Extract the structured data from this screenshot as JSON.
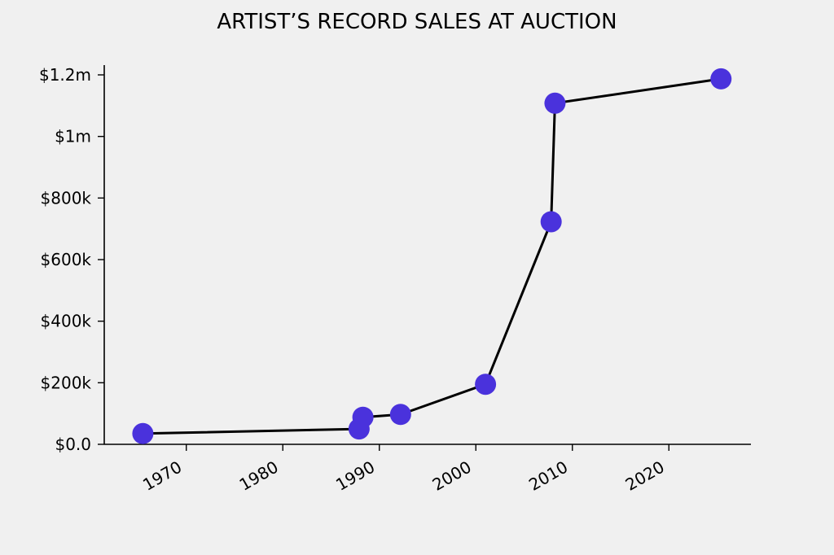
{
  "chart_data": {
    "type": "line",
    "title": "ARTIST’S RECORD SALES AT AUCTION",
    "xlabel": "",
    "ylabel": "",
    "xlim": [
      1961.5,
      2028.5
    ],
    "ylim": [
      0,
      1200000
    ],
    "x_ticks": [
      1970,
      1980,
      1990,
      2000,
      2010,
      2020
    ],
    "x_tick_labels": [
      "1970",
      "1980",
      "1990",
      "2000",
      "2010",
      "2020"
    ],
    "y_ticks": [
      0,
      200000,
      400000,
      600000,
      800000,
      1000000,
      1200000
    ],
    "y_tick_labels": [
      "$0.0",
      "$200k",
      "$400k",
      "$600k",
      "$800k",
      "$1m",
      "$1.2m"
    ],
    "grid": false,
    "line_color": "#000000",
    "marker_color": "#4a32dc",
    "series": [
      {
        "points": [
          {
            "x": 1965.5,
            "y": 35000
          },
          {
            "x": 1987.9,
            "y": 50000
          },
          {
            "x": 1988.3,
            "y": 88000
          },
          {
            "x": 1992.2,
            "y": 97000
          },
          {
            "x": 2001.0,
            "y": 195000
          },
          {
            "x": 2007.8,
            "y": 723000
          },
          {
            "x": 2008.2,
            "y": 1108000
          },
          {
            "x": 2025.4,
            "y": 1187000
          }
        ]
      }
    ]
  }
}
